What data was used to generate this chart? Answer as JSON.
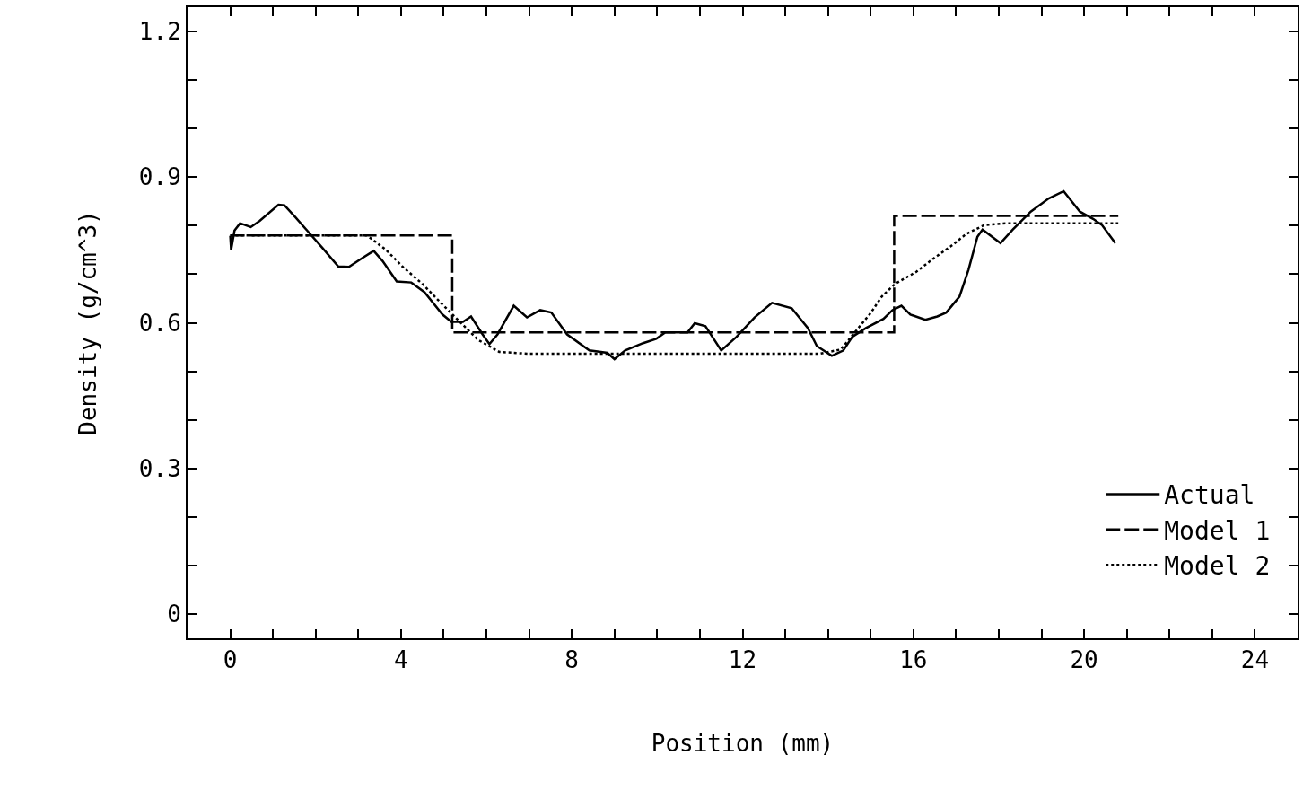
{
  "chart_data": {
    "type": "line",
    "xlabel": "Position (mm)",
    "ylabel": "Density (g/cm^3)",
    "xlim": [
      -1,
      25
    ],
    "ylim": [
      -0.05,
      1.25
    ],
    "xticks": [
      0,
      {
        "value": 1,
        "label": null
      },
      {
        "value": 2,
        "label": null
      },
      {
        "value": 3,
        "label": null
      },
      4,
      {
        "value": 5,
        "label": null
      },
      {
        "value": 6,
        "label": null
      },
      {
        "value": 7,
        "label": null
      },
      8,
      {
        "value": 9,
        "label": null
      },
      {
        "value": 10,
        "label": null
      },
      {
        "value": 11,
        "label": null
      },
      12,
      {
        "value": 13,
        "label": null
      },
      {
        "value": 14,
        "label": null
      },
      {
        "value": 15,
        "label": null
      },
      16,
      {
        "value": 17,
        "label": null
      },
      {
        "value": 18,
        "label": null
      },
      {
        "value": 19,
        "label": null
      },
      20,
      {
        "value": 21,
        "label": null
      },
      {
        "value": 22,
        "label": null
      },
      {
        "value": 23,
        "label": null
      },
      24
    ],
    "yticks": [
      0,
      {
        "value": 0.1,
        "label": null
      },
      {
        "value": 0.2,
        "label": null
      },
      0.3,
      {
        "value": 0.4,
        "label": null
      },
      {
        "value": 0.5,
        "label": null
      },
      0.6,
      {
        "value": 0.7,
        "label": null
      },
      {
        "value": 0.8,
        "label": null
      },
      0.9,
      {
        "value": 1.0,
        "label": null
      },
      {
        "value": 1.1,
        "label": null
      },
      1.2
    ],
    "legend": "bottom right",
    "marker": "none",
    "series": [
      {
        "name": "Actual",
        "color": "#000000",
        "line_style": "solid",
        "x": [
          0,
          0.02,
          0.1,
          0.23,
          0.48,
          0.69,
          1.13,
          1.27,
          1.52,
          1.8,
          2.15,
          2.53,
          2.78,
          3.09,
          3.36,
          3.57,
          3.9,
          4.24,
          4.55,
          4.97,
          5.18,
          5.45,
          5.64,
          5.91,
          6.07,
          6.26,
          6.64,
          6.95,
          7.26,
          7.52,
          7.89,
          8.41,
          8.83,
          9.0,
          9.25,
          9.67,
          9.98,
          10.19,
          10.71,
          10.88,
          11.13,
          11.5,
          11.86,
          12.28,
          12.69,
          13.15,
          13.53,
          13.74,
          14.09,
          14.36,
          14.57,
          14.89,
          15.3,
          15.51,
          15.72,
          15.93,
          16.28,
          16.56,
          16.77,
          17.08,
          17.29,
          17.5,
          17.62,
          18.04,
          18.33,
          18.75,
          19.17,
          19.52,
          19.9,
          20.21,
          20.42,
          20.73
        ],
        "values": [
          0.779,
          0.75,
          0.79,
          0.805,
          0.797,
          0.81,
          0.843,
          0.842,
          0.818,
          0.79,
          0.755,
          0.716,
          0.715,
          0.733,
          0.748,
          0.727,
          0.685,
          0.683,
          0.663,
          0.617,
          0.602,
          0.602,
          0.613,
          0.576,
          0.556,
          0.576,
          0.635,
          0.611,
          0.626,
          0.621,
          0.576,
          0.543,
          0.538,
          0.525,
          0.543,
          0.558,
          0.567,
          0.58,
          0.58,
          0.599,
          0.593,
          0.543,
          0.571,
          0.611,
          0.641,
          0.63,
          0.589,
          0.552,
          0.532,
          0.543,
          0.571,
          0.589,
          0.608,
          0.626,
          0.635,
          0.617,
          0.606,
          0.613,
          0.621,
          0.654,
          0.709,
          0.777,
          0.792,
          0.764,
          0.792,
          0.829,
          0.856,
          0.871,
          0.829,
          0.814,
          0.801,
          0.764
        ]
      },
      {
        "name": "Model 1",
        "color": "#000000",
        "type": "step",
        "line_style": "dashed",
        "x": [
          0,
          5.2,
          15.55,
          20.8
        ],
        "values": [
          0.78,
          0.58,
          0.82,
          0.82
        ]
      },
      {
        "name": "Model 2",
        "color": "#000000",
        "line_style": "dotted",
        "x": [
          0,
          3.2,
          3.65,
          4.03,
          4.5,
          5.0,
          5.4,
          5.8,
          6.3,
          7.0,
          13.8,
          14.3,
          15.0,
          15.26,
          15.57,
          16.07,
          16.45,
          16.87,
          17.24,
          17.66,
          18.2,
          20.8
        ],
        "values": [
          0.78,
          0.78,
          0.75,
          0.716,
          0.68,
          0.635,
          0.6,
          0.565,
          0.54,
          0.536,
          0.536,
          0.545,
          0.62,
          0.654,
          0.68,
          0.705,
          0.731,
          0.757,
          0.783,
          0.801,
          0.805,
          0.805
        ]
      }
    ]
  }
}
